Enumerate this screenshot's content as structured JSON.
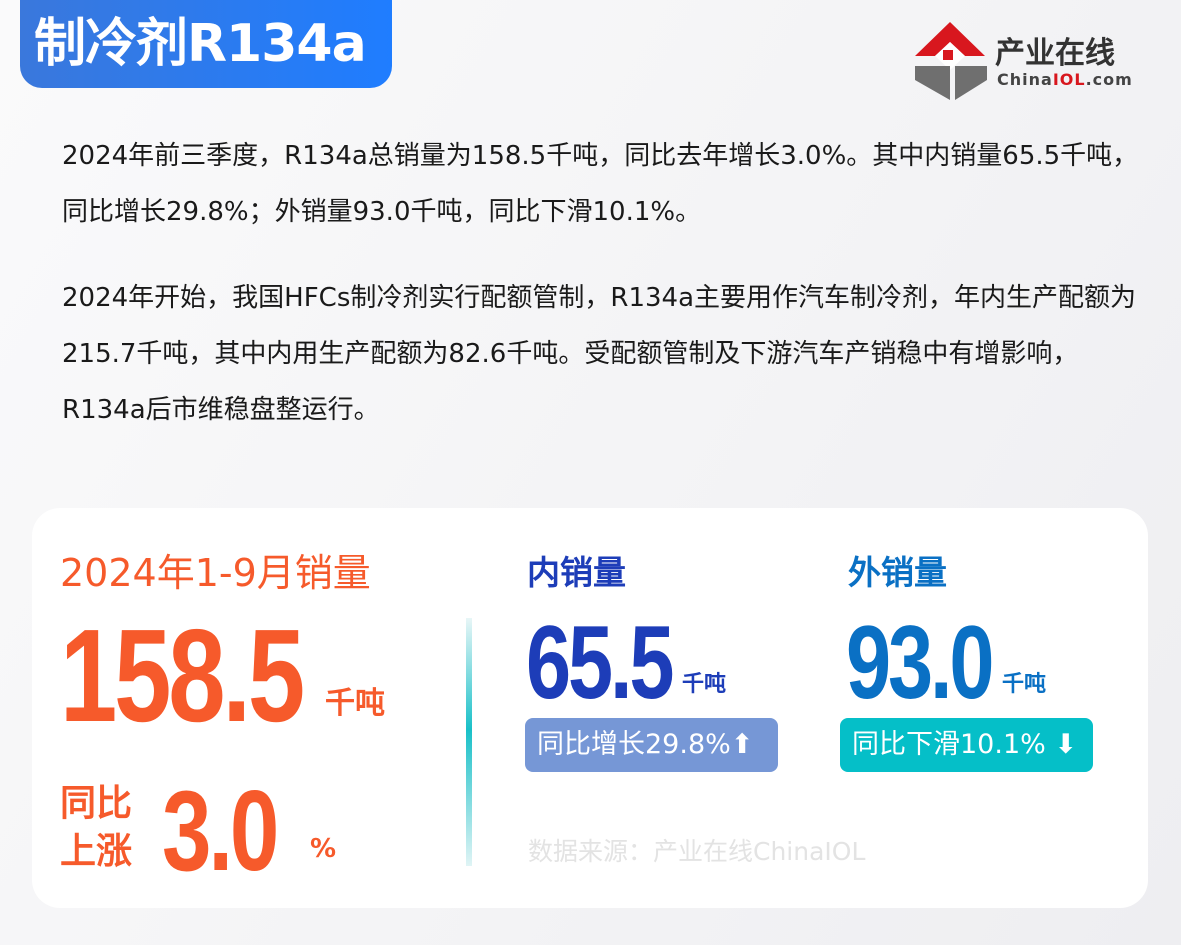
{
  "title": "制冷剂R134a",
  "logo": {
    "name": "产业在线",
    "domain_prefix": "China",
    "domain_mid": "IOL",
    "domain_suffix": ".com"
  },
  "paragraphs": [
    "2024年前三季度，R134a总销量为158.5千吨，同比去年增长3.0%。其中内销量65.5千吨，同比增长29.8%；外销量93.0千吨，同比下滑10.1%。",
    "2024年开始，我国HFCs制冷剂实行配额管制，R134a主要用作汽车制冷剂，年内生产配额为215.7千吨，其中内用生产配额为82.6千吨。受配额管制及下游汽车产销稳中有增影响，R134a后市维稳盘整运行。"
  ],
  "card": {
    "total": {
      "label": "2024年1-9月销量",
      "value": "158.5",
      "unit": "千吨",
      "yoy_label_1": "同比",
      "yoy_label_2": "上涨",
      "yoy_value": "3.0",
      "yoy_unit": "%"
    },
    "domestic": {
      "label": "内销量",
      "value": "65.5",
      "unit": "千吨",
      "badge": "同比增长29.8%",
      "arrow": "⬆",
      "color": "#1d3db8",
      "badge_color": "#7697d6"
    },
    "export": {
      "label": "外销量",
      "value": "93.0",
      "unit": "千吨",
      "badge": "同比下滑10.1%",
      "arrow": "⬇",
      "color": "#0a70c4",
      "badge_color": "#05bfc8"
    },
    "source": "数据来源：产业在线ChinaIOL"
  }
}
